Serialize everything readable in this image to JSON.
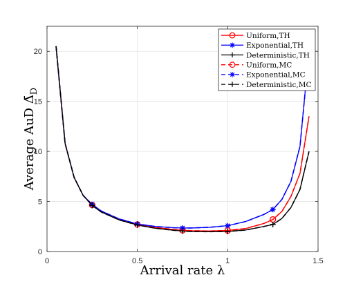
{
  "chart_data": {
    "type": "line",
    "xlabel": "Arrival rate λ",
    "ylabel_main": "Average AuD Δ̄",
    "ylabel_sub": "D",
    "xlim": [
      0,
      1.5
    ],
    "ylim": [
      0,
      22.5
    ],
    "xticks": [
      0,
      0.5,
      1,
      1.5
    ],
    "xtick_labels": [
      "0",
      "0.5",
      "1",
      "1.5"
    ],
    "yticks": [
      0,
      5,
      10,
      15,
      20
    ],
    "ytick_labels": [
      "0",
      "5",
      "10",
      "15",
      "20"
    ],
    "grid": true,
    "legend_position": "top-right",
    "series": [
      {
        "name": "Uniform,TH",
        "color": "#ff0000",
        "line_style": "solid",
        "marker": "circle",
        "x": [
          0.05,
          0.1,
          0.15,
          0.2,
          0.25,
          0.3,
          0.4,
          0.5,
          0.6,
          0.7,
          0.75,
          0.8,
          0.9,
          1.0,
          1.1,
          1.2,
          1.25,
          1.3,
          1.35,
          1.4,
          1.45
        ],
        "y": [
          20.5,
          10.8,
          7.4,
          5.6,
          4.65,
          4.0,
          3.2,
          2.7,
          2.4,
          2.2,
          2.12,
          2.08,
          2.05,
          2.1,
          2.3,
          2.8,
          3.2,
          4.0,
          5.5,
          7.8,
          13.5
        ],
        "marker_x": [
          0.25,
          0.5,
          0.75,
          1.0,
          1.25
        ]
      },
      {
        "name": "Exponential,TH",
        "color": "#0000ff",
        "line_style": "solid",
        "marker": "star",
        "x": [
          0.05,
          0.1,
          0.15,
          0.2,
          0.25,
          0.3,
          0.4,
          0.5,
          0.6,
          0.7,
          0.75,
          0.8,
          0.9,
          1.0,
          1.1,
          1.2,
          1.25,
          1.3,
          1.35,
          1.4,
          1.45
        ],
        "y": [
          20.5,
          10.8,
          7.4,
          5.6,
          4.7,
          4.05,
          3.25,
          2.75,
          2.5,
          2.38,
          2.35,
          2.35,
          2.42,
          2.58,
          3.0,
          3.7,
          4.2,
          5.2,
          7.0,
          10.5,
          20.0
        ],
        "marker_x": [
          0.25,
          0.5,
          0.75,
          1.0,
          1.25
        ]
      },
      {
        "name": "Deterministic,TH",
        "color": "#000000",
        "line_style": "solid",
        "marker": "plus",
        "x": [
          0.05,
          0.1,
          0.15,
          0.2,
          0.25,
          0.3,
          0.4,
          0.5,
          0.6,
          0.7,
          0.75,
          0.8,
          0.9,
          1.0,
          1.1,
          1.2,
          1.25,
          1.3,
          1.35,
          1.4,
          1.45
        ],
        "y": [
          20.5,
          10.8,
          7.4,
          5.6,
          4.6,
          3.95,
          3.15,
          2.65,
          2.32,
          2.12,
          2.05,
          2.0,
          1.98,
          2.0,
          2.15,
          2.5,
          2.7,
          3.3,
          4.4,
          6.2,
          10.0
        ],
        "marker_x": [
          0.25,
          0.5,
          0.75,
          1.0,
          1.25
        ]
      },
      {
        "name": "Uniform,MC",
        "color": "#ff0000",
        "line_style": "dashed",
        "marker": "circle",
        "x": [
          0.05,
          0.1,
          0.15,
          0.2,
          0.25,
          0.3,
          0.4,
          0.5,
          0.6,
          0.7,
          0.75,
          0.8,
          0.9,
          1.0,
          1.1,
          1.2,
          1.25,
          1.3,
          1.35,
          1.4,
          1.45
        ],
        "y": [
          20.5,
          10.8,
          7.4,
          5.6,
          4.65,
          4.0,
          3.2,
          2.7,
          2.4,
          2.2,
          2.12,
          2.08,
          2.05,
          2.1,
          2.3,
          2.8,
          3.2,
          4.0,
          5.5,
          7.8,
          13.5
        ],
        "marker_x": [
          0.25,
          0.5,
          0.75,
          1.0,
          1.25
        ]
      },
      {
        "name": "Exponential,MC",
        "color": "#0000ff",
        "line_style": "dashed",
        "marker": "star",
        "x": [
          0.05,
          0.1,
          0.15,
          0.2,
          0.25,
          0.3,
          0.4,
          0.5,
          0.6,
          0.7,
          0.75,
          0.8,
          0.9,
          1.0,
          1.1,
          1.2,
          1.25,
          1.3,
          1.35,
          1.4,
          1.45
        ],
        "y": [
          20.5,
          10.8,
          7.4,
          5.6,
          4.7,
          4.05,
          3.25,
          2.75,
          2.5,
          2.38,
          2.35,
          2.35,
          2.42,
          2.58,
          3.0,
          3.7,
          4.2,
          5.2,
          7.0,
          10.5,
          20.0
        ],
        "marker_x": [
          0.25,
          0.5,
          0.75,
          1.0,
          1.25
        ]
      },
      {
        "name": "Deterministic,MC",
        "color": "#000000",
        "line_style": "dashed",
        "marker": "plus",
        "x": [
          0.05,
          0.1,
          0.15,
          0.2,
          0.25,
          0.3,
          0.4,
          0.5,
          0.6,
          0.7,
          0.75,
          0.8,
          0.9,
          1.0,
          1.1,
          1.2,
          1.25,
          1.3,
          1.35,
          1.4,
          1.45
        ],
        "y": [
          20.5,
          10.8,
          7.4,
          5.6,
          4.6,
          3.95,
          3.15,
          2.65,
          2.32,
          2.12,
          2.05,
          2.0,
          1.98,
          2.0,
          2.15,
          2.5,
          2.7,
          3.3,
          4.4,
          6.2,
          10.0
        ],
        "marker_x": [
          0.25,
          0.5,
          0.75,
          1.0,
          1.25
        ]
      }
    ]
  }
}
